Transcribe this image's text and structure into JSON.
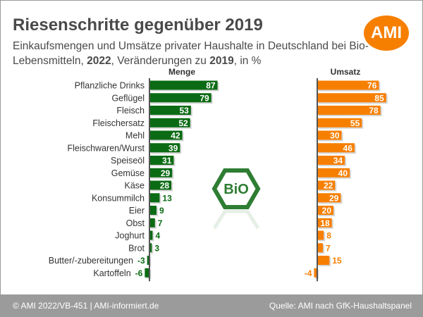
{
  "header": {
    "title": "Riesenschritte gegenüber 2019",
    "subtitle_parts": [
      "Einkaufsmengen und Umsätze privater Haushalte in Deutschland bei Bio-Lebensmitteln, ",
      "2022",
      ", Veränderungen zu ",
      "2019",
      ", in %"
    ],
    "logo_text": "AMI"
  },
  "footer": {
    "left": "© AMI 2022/VB-451 | AMI-informiert.de",
    "right": "Quelle: AMI nach GfK-Haushaltspanel"
  },
  "colors": {
    "menge": "#0b6b14",
    "umsatz": "#f77f00",
    "footer": "#9b9b9b"
  },
  "icons": {
    "bio": "bio-hexagon-seal-icon"
  },
  "chart_data": {
    "type": "bar",
    "orientation": "horizontal",
    "categories": [
      "Pflanzliche Drinks",
      "Geflügel",
      "Fleisch",
      "Fleischersatz",
      "Mehl",
      "Fleischwaren/Wurst",
      "Speiseöl",
      "Gemüse",
      "Käse",
      "Konsummilch",
      "Eier",
      "Obst",
      "Joghurt",
      "Brot",
      "Butter/-zubereitungen",
      "Kartoffeln"
    ],
    "series": [
      {
        "name": "Menge",
        "values": [
          87,
          79,
          53,
          52,
          42,
          39,
          31,
          29,
          28,
          13,
          9,
          7,
          4,
          3,
          -3,
          -6
        ]
      },
      {
        "name": "Umsatz",
        "values": [
          76,
          85,
          78,
          55,
          30,
          46,
          34,
          40,
          22,
          29,
          20,
          18,
          8,
          7,
          15,
          -4
        ]
      }
    ],
    "grid": false
  }
}
